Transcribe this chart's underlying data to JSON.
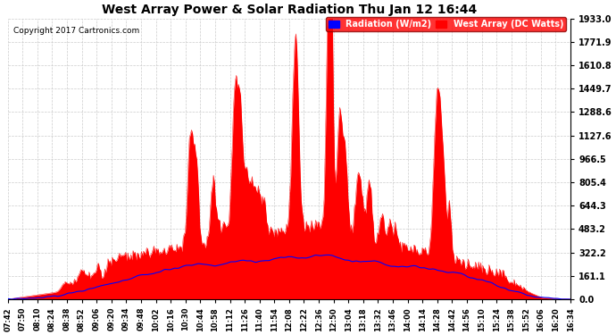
{
  "title": "West Array Power & Solar Radiation Thu Jan 12 16:44",
  "copyright": "Copyright 2017 Cartronics.com",
  "legend_labels": [
    "Radiation (W/m2)",
    "West Array (DC Watts)"
  ],
  "y_max": 1933.0,
  "y_ticks": [
    0.0,
    161.1,
    322.2,
    483.2,
    644.3,
    805.4,
    966.5,
    1127.6,
    1288.6,
    1449.7,
    1610.8,
    1771.9,
    1933.0
  ],
  "background_color": "#ffffff",
  "grid_color": "#cccccc",
  "red_color": "#ff0000",
  "blue_color": "#0000ff",
  "x_labels": [
    "07:42",
    "07:50",
    "08:10",
    "08:24",
    "08:38",
    "08:52",
    "09:06",
    "09:20",
    "09:34",
    "09:48",
    "10:02",
    "10:16",
    "10:30",
    "10:44",
    "10:58",
    "11:12",
    "11:26",
    "11:40",
    "11:54",
    "12:08",
    "12:22",
    "12:36",
    "12:50",
    "13:04",
    "13:18",
    "13:32",
    "13:46",
    "14:00",
    "14:14",
    "14:28",
    "14:42",
    "14:56",
    "15:10",
    "15:24",
    "15:38",
    "15:52",
    "16:06",
    "16:20",
    "16:34"
  ]
}
